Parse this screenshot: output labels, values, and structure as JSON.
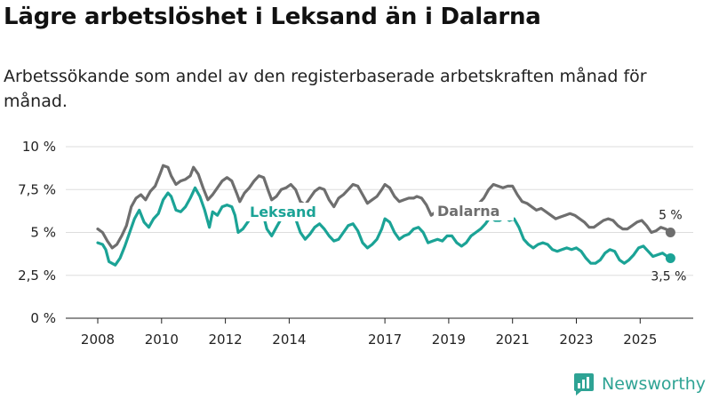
{
  "header": {
    "title": "Lägre arbetslöshet i Leksand än i Dalarna",
    "subtitle": "Arbetssökande som andel av den registerbaserade arbetskraften månad för månad."
  },
  "brand": {
    "name": "Newsworthy"
  },
  "chart_data": {
    "type": "line",
    "title": "Lägre arbetslöshet i Leksand än i Dalarna",
    "subtitle": "Arbetssökande som andel av den registerbaserade arbetskraften månad för månad.",
    "xlabel": "",
    "ylabel": "",
    "xlim": [
      2008,
      2026.1
    ],
    "ylim": [
      0,
      10
    ],
    "grid": true,
    "yticks": [
      {
        "value": 0,
        "label": "0 %"
      },
      {
        "value": 2.5,
        "label": "2,5 %"
      },
      {
        "value": 5,
        "label": "5 %"
      },
      {
        "value": 7.5,
        "label": "7,5 %"
      },
      {
        "value": 10,
        "label": "10 %"
      }
    ],
    "xticks": [
      {
        "value": 2008,
        "label": "2008"
      },
      {
        "value": 2010,
        "label": "2010"
      },
      {
        "value": 2012,
        "label": "2012"
      },
      {
        "value": 2014,
        "label": "2014"
      },
      {
        "value": 2017,
        "label": "2017"
      },
      {
        "value": 2019,
        "label": "2019"
      },
      {
        "value": 2021,
        "label": "2021"
      },
      {
        "value": 2023,
        "label": "2023"
      },
      {
        "value": 2025,
        "label": "2025"
      }
    ],
    "series": [
      {
        "name": "Dalarna",
        "color": "#6e6e6e",
        "end_label": "5 %",
        "points": [
          [
            2008.0,
            5.2
          ],
          [
            2008.15,
            5.0
          ],
          [
            2008.3,
            4.5
          ],
          [
            2008.45,
            4.1
          ],
          [
            2008.6,
            4.3
          ],
          [
            2008.75,
            4.8
          ],
          [
            2008.9,
            5.4
          ],
          [
            2009.05,
            6.5
          ],
          [
            2009.2,
            7.0
          ],
          [
            2009.35,
            7.2
          ],
          [
            2009.5,
            6.9
          ],
          [
            2009.65,
            7.4
          ],
          [
            2009.8,
            7.7
          ],
          [
            2009.95,
            8.4
          ],
          [
            2010.05,
            8.9
          ],
          [
            2010.2,
            8.8
          ],
          [
            2010.3,
            8.3
          ],
          [
            2010.45,
            7.8
          ],
          [
            2010.6,
            8.0
          ],
          [
            2010.75,
            8.1
          ],
          [
            2010.9,
            8.3
          ],
          [
            2011.0,
            8.8
          ],
          [
            2011.15,
            8.4
          ],
          [
            2011.3,
            7.6
          ],
          [
            2011.45,
            6.9
          ],
          [
            2011.6,
            7.2
          ],
          [
            2011.75,
            7.6
          ],
          [
            2011.9,
            8.0
          ],
          [
            2012.05,
            8.2
          ],
          [
            2012.2,
            8.0
          ],
          [
            2012.35,
            7.3
          ],
          [
            2012.45,
            6.8
          ],
          [
            2012.6,
            7.3
          ],
          [
            2012.75,
            7.6
          ],
          [
            2012.9,
            8.0
          ],
          [
            2013.05,
            8.3
          ],
          [
            2013.2,
            8.2
          ],
          [
            2013.35,
            7.4
          ],
          [
            2013.45,
            6.9
          ],
          [
            2013.6,
            7.1
          ],
          [
            2013.75,
            7.5
          ],
          [
            2013.9,
            7.6
          ],
          [
            2014.05,
            7.8
          ],
          [
            2014.2,
            7.5
          ],
          [
            2014.35,
            6.8
          ],
          [
            2014.5,
            6.6
          ],
          [
            2014.65,
            7.0
          ],
          [
            2014.8,
            7.4
          ],
          [
            2014.95,
            7.6
          ],
          [
            2015.1,
            7.5
          ],
          [
            2015.25,
            6.9
          ],
          [
            2015.4,
            6.5
          ],
          [
            2015.55,
            7.0
          ],
          [
            2015.7,
            7.2
          ],
          [
            2015.85,
            7.5
          ],
          [
            2016.0,
            7.8
          ],
          [
            2016.15,
            7.7
          ],
          [
            2016.3,
            7.2
          ],
          [
            2016.45,
            6.7
          ],
          [
            2016.6,
            6.9
          ],
          [
            2016.75,
            7.1
          ],
          [
            2016.9,
            7.5
          ],
          [
            2017.0,
            7.8
          ],
          [
            2017.15,
            7.6
          ],
          [
            2017.3,
            7.1
          ],
          [
            2017.45,
            6.8
          ],
          [
            2017.6,
            6.9
          ],
          [
            2017.75,
            7.0
          ],
          [
            2017.9,
            7.0
          ],
          [
            2018.0,
            7.1
          ],
          [
            2018.15,
            7.0
          ],
          [
            2018.3,
            6.6
          ],
          [
            2018.45,
            6.0
          ],
          [
            2018.6,
            6.2
          ],
          [
            2018.75,
            6.4
          ],
          [
            2018.9,
            6.3
          ],
          [
            2019.05,
            6.1
          ],
          [
            2019.2,
            6.1
          ],
          [
            2019.35,
            5.9
          ],
          [
            2019.5,
            5.9
          ],
          [
            2019.65,
            6.2
          ],
          [
            2019.8,
            6.5
          ],
          [
            2019.95,
            6.7
          ],
          [
            2020.1,
            7.0
          ],
          [
            2020.25,
            7.5
          ],
          [
            2020.4,
            7.8
          ],
          [
            2020.55,
            7.7
          ],
          [
            2020.7,
            7.6
          ],
          [
            2020.85,
            7.7
          ],
          [
            2021.0,
            7.7
          ],
          [
            2021.15,
            7.2
          ],
          [
            2021.3,
            6.8
          ],
          [
            2021.45,
            6.7
          ],
          [
            2021.6,
            6.5
          ],
          [
            2021.75,
            6.3
          ],
          [
            2021.9,
            6.4
          ],
          [
            2022.05,
            6.2
          ],
          [
            2022.2,
            6.0
          ],
          [
            2022.35,
            5.8
          ],
          [
            2022.5,
            5.9
          ],
          [
            2022.65,
            6.0
          ],
          [
            2022.8,
            6.1
          ],
          [
            2022.95,
            6.0
          ],
          [
            2023.1,
            5.8
          ],
          [
            2023.25,
            5.6
          ],
          [
            2023.4,
            5.3
          ],
          [
            2023.55,
            5.3
          ],
          [
            2023.7,
            5.5
          ],
          [
            2023.85,
            5.7
          ],
          [
            2024.0,
            5.8
          ],
          [
            2024.15,
            5.7
          ],
          [
            2024.3,
            5.4
          ],
          [
            2024.45,
            5.2
          ],
          [
            2024.6,
            5.2
          ],
          [
            2024.75,
            5.4
          ],
          [
            2024.9,
            5.6
          ],
          [
            2025.05,
            5.7
          ],
          [
            2025.2,
            5.4
          ],
          [
            2025.35,
            5.0
          ],
          [
            2025.5,
            5.1
          ],
          [
            2025.65,
            5.3
          ],
          [
            2025.8,
            5.2
          ],
          [
            2025.95,
            5.0
          ]
        ]
      },
      {
        "name": "Leksand",
        "color": "#1ba396",
        "end_label": "3,5 %",
        "points": [
          [
            2008.0,
            4.4
          ],
          [
            2008.15,
            4.3
          ],
          [
            2008.25,
            4.0
          ],
          [
            2008.35,
            3.3
          ],
          [
            2008.55,
            3.1
          ],
          [
            2008.7,
            3.5
          ],
          [
            2008.85,
            4.2
          ],
          [
            2009.0,
            5.0
          ],
          [
            2009.15,
            5.8
          ],
          [
            2009.3,
            6.3
          ],
          [
            2009.45,
            5.6
          ],
          [
            2009.6,
            5.3
          ],
          [
            2009.75,
            5.8
          ],
          [
            2009.9,
            6.1
          ],
          [
            2010.05,
            6.9
          ],
          [
            2010.2,
            7.3
          ],
          [
            2010.3,
            7.1
          ],
          [
            2010.45,
            6.3
          ],
          [
            2010.6,
            6.2
          ],
          [
            2010.75,
            6.5
          ],
          [
            2010.9,
            7.0
          ],
          [
            2011.05,
            7.6
          ],
          [
            2011.2,
            7.1
          ],
          [
            2011.35,
            6.3
          ],
          [
            2011.5,
            5.3
          ],
          [
            2011.6,
            6.2
          ],
          [
            2011.75,
            6.0
          ],
          [
            2011.9,
            6.5
          ],
          [
            2012.05,
            6.6
          ],
          [
            2012.2,
            6.5
          ],
          [
            2012.3,
            6.0
          ],
          [
            2012.4,
            5.0
          ],
          [
            2012.55,
            5.2
          ],
          [
            2012.7,
            5.6
          ],
          [
            2012.85,
            6.0
          ],
          [
            2013.0,
            6.5
          ],
          [
            2013.15,
            6.3
          ],
          [
            2013.3,
            5.2
          ],
          [
            2013.45,
            4.8
          ],
          [
            2013.6,
            5.3
          ],
          [
            2013.75,
            5.8
          ],
          [
            2013.9,
            6.0
          ],
          [
            2014.05,
            6.1
          ],
          [
            2014.2,
            5.8
          ],
          [
            2014.35,
            5.0
          ],
          [
            2014.5,
            4.6
          ],
          [
            2014.65,
            4.9
          ],
          [
            2014.8,
            5.3
          ],
          [
            2014.95,
            5.5
          ],
          [
            2015.1,
            5.2
          ],
          [
            2015.25,
            4.8
          ],
          [
            2015.4,
            4.5
          ],
          [
            2015.55,
            4.6
          ],
          [
            2015.7,
            5.0
          ],
          [
            2015.85,
            5.4
          ],
          [
            2016.0,
            5.5
          ],
          [
            2016.15,
            5.1
          ],
          [
            2016.3,
            4.4
          ],
          [
            2016.45,
            4.1
          ],
          [
            2016.6,
            4.3
          ],
          [
            2016.75,
            4.6
          ],
          [
            2016.9,
            5.2
          ],
          [
            2017.0,
            5.8
          ],
          [
            2017.15,
            5.6
          ],
          [
            2017.3,
            5.0
          ],
          [
            2017.45,
            4.6
          ],
          [
            2017.6,
            4.8
          ],
          [
            2017.75,
            4.9
          ],
          [
            2017.9,
            5.2
          ],
          [
            2018.05,
            5.3
          ],
          [
            2018.2,
            5.0
          ],
          [
            2018.35,
            4.4
          ],
          [
            2018.5,
            4.5
          ],
          [
            2018.65,
            4.6
          ],
          [
            2018.8,
            4.5
          ],
          [
            2018.95,
            4.8
          ],
          [
            2019.1,
            4.8
          ],
          [
            2019.25,
            4.4
          ],
          [
            2019.4,
            4.2
          ],
          [
            2019.55,
            4.4
          ],
          [
            2019.7,
            4.8
          ],
          [
            2019.85,
            5.0
          ],
          [
            2020.0,
            5.2
          ],
          [
            2020.15,
            5.5
          ],
          [
            2020.3,
            5.9
          ],
          [
            2020.45,
            5.7
          ],
          [
            2020.6,
            5.7
          ],
          [
            2020.75,
            5.9
          ],
          [
            2020.9,
            5.7
          ],
          [
            2021.05,
            5.8
          ],
          [
            2021.2,
            5.3
          ],
          [
            2021.35,
            4.6
          ],
          [
            2021.5,
            4.3
          ],
          [
            2021.65,
            4.1
          ],
          [
            2021.8,
            4.3
          ],
          [
            2021.95,
            4.4
          ],
          [
            2022.1,
            4.3
          ],
          [
            2022.25,
            4.0
          ],
          [
            2022.4,
            3.9
          ],
          [
            2022.55,
            4.0
          ],
          [
            2022.7,
            4.1
          ],
          [
            2022.85,
            4.0
          ],
          [
            2023.0,
            4.1
          ],
          [
            2023.15,
            3.9
          ],
          [
            2023.3,
            3.5
          ],
          [
            2023.45,
            3.2
          ],
          [
            2023.6,
            3.2
          ],
          [
            2023.75,
            3.4
          ],
          [
            2023.9,
            3.8
          ],
          [
            2024.05,
            4.0
          ],
          [
            2024.2,
            3.9
          ],
          [
            2024.35,
            3.4
          ],
          [
            2024.5,
            3.2
          ],
          [
            2024.65,
            3.4
          ],
          [
            2024.8,
            3.7
          ],
          [
            2024.95,
            4.1
          ],
          [
            2025.1,
            4.2
          ],
          [
            2025.25,
            3.9
          ],
          [
            2025.4,
            3.6
          ],
          [
            2025.55,
            3.7
          ],
          [
            2025.7,
            3.8
          ],
          [
            2025.85,
            3.6
          ],
          [
            2025.95,
            3.5
          ]
        ]
      }
    ],
    "annotations": [
      {
        "text": "Leksand",
        "series": "Leksand"
      },
      {
        "text": "Dalarna",
        "series": "Dalarna"
      }
    ]
  }
}
